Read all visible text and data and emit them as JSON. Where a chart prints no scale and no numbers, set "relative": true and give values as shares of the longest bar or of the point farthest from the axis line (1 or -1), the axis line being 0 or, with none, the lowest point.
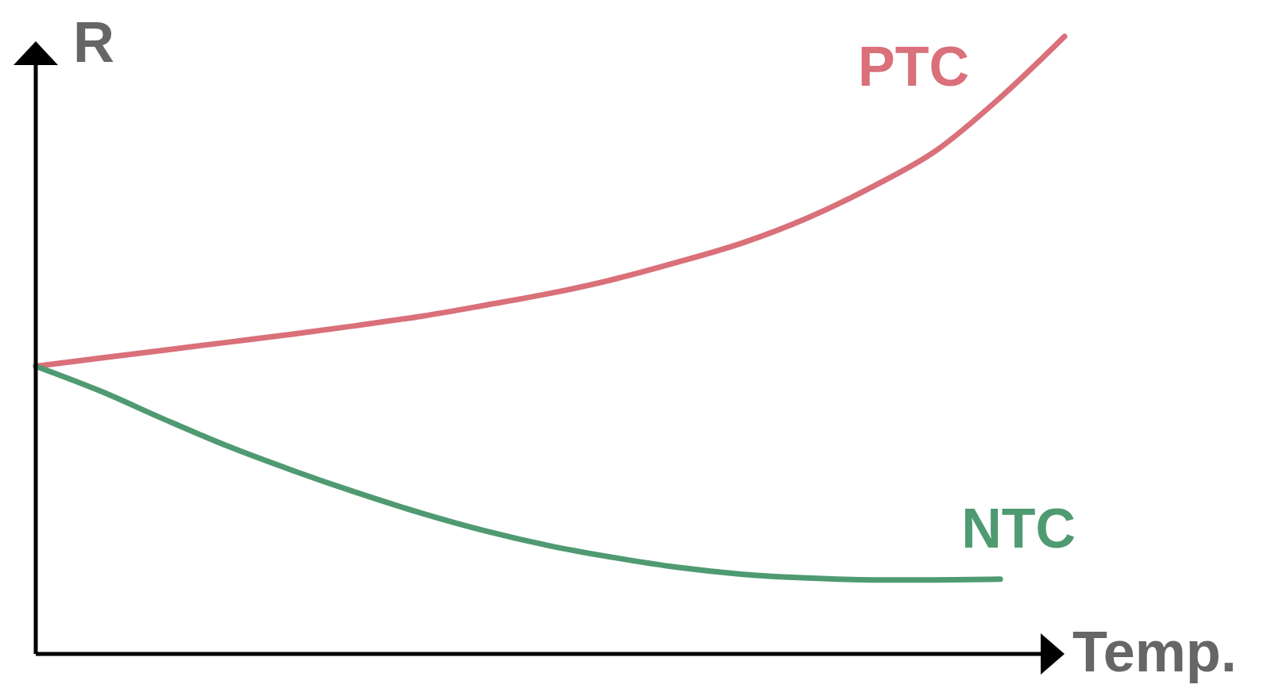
{
  "chart_data": {
    "type": "line",
    "relative": true,
    "xlabel": "Temp.",
    "ylabel": "R",
    "categories": [
      null,
      null,
      null,
      null,
      null,
      null,
      null,
      null,
      null,
      null,
      null,
      null,
      null,
      null,
      null,
      null,
      null
    ],
    "series": [
      {
        "name": "PTC",
        "color": "#d9707a",
        "values": [
          0.466,
          0.479,
          0.492,
          0.505,
          0.518,
          0.532,
          0.547,
          0.565,
          0.584,
          0.607,
          0.635,
          0.666,
          0.706,
          0.756,
          0.815,
          0.901,
          1
        ]
      },
      {
        "name": "NTC",
        "color": "#4f9a72",
        "values": [
          0.466,
          0.426,
          0.38,
          0.336,
          0.297,
          0.261,
          0.228,
          0.199,
          0.175,
          0.156,
          0.14,
          0.129,
          0.123,
          0.12,
          0.12,
          0.121,
          null
        ]
      }
    ]
  }
}
